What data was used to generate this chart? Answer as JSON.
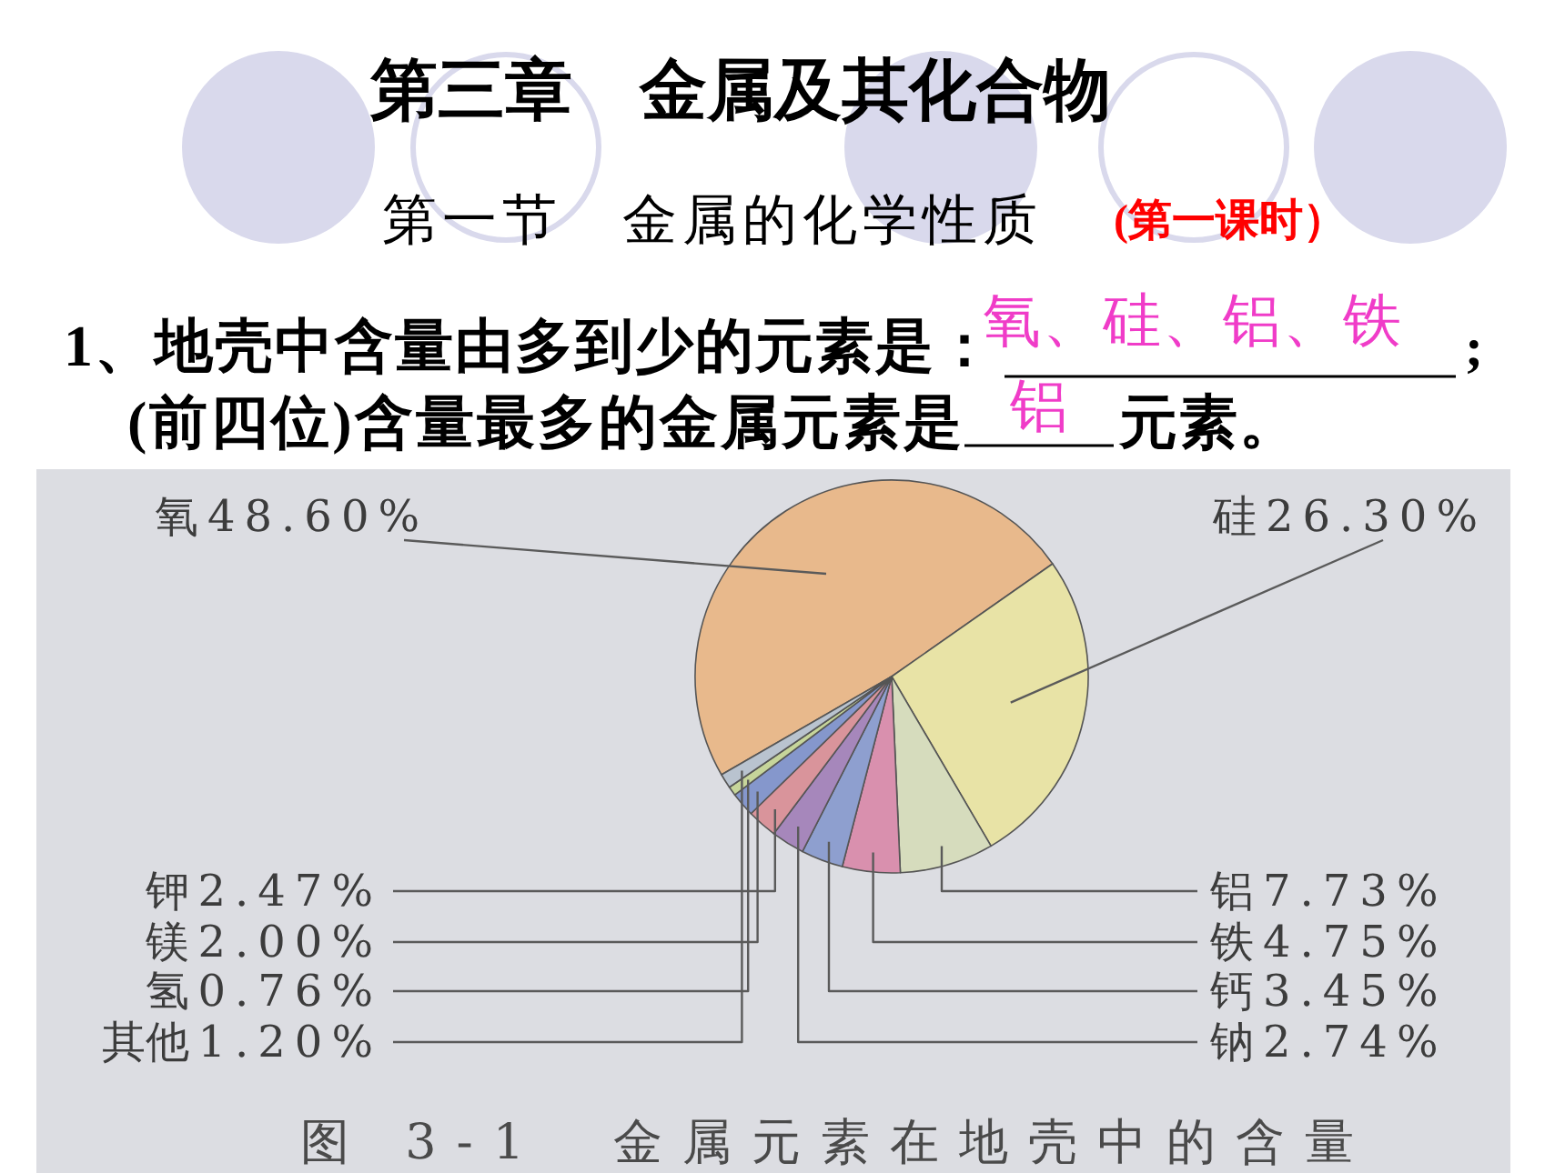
{
  "chart_data": {
    "type": "pie",
    "title": "第三章　金属及其化合物",
    "subtitle": "第一节　金属的化学性质",
    "annotations": [
      "(第一课时）",
      "1、地壳中含量由多到少的元素是：",
      "氧、硅、铝、铁",
      ";",
      "(前四位)含量最多的金属元素是",
      "铝",
      "元素。",
      "图 3-1　金属元素在地壳中的含量"
    ],
    "categories": [
      "氧",
      "硅",
      "铝",
      "铁",
      "钙",
      "钠",
      "钾",
      "镁",
      "氢",
      "其他"
    ],
    "values": [
      48.6,
      26.3,
      7.73,
      4.75,
      3.45,
      2.74,
      2.47,
      2.0,
      0.76,
      1.2
    ],
    "value_labels": [
      "48.60%",
      "26.30%",
      "7.73%",
      "4.75%",
      "3.45%",
      "2.74%",
      "2.47%",
      "2.00%",
      "0.76%",
      "1.20%"
    ],
    "colors": [
      "#e8b98c",
      "#e8e3a6",
      "#d6dcbd",
      "#d990ae",
      "#8e9fcf",
      "#a687bb",
      "#d9949b",
      "#8597cc",
      "#c6d59a",
      "#b9c3cf"
    ]
  }
}
